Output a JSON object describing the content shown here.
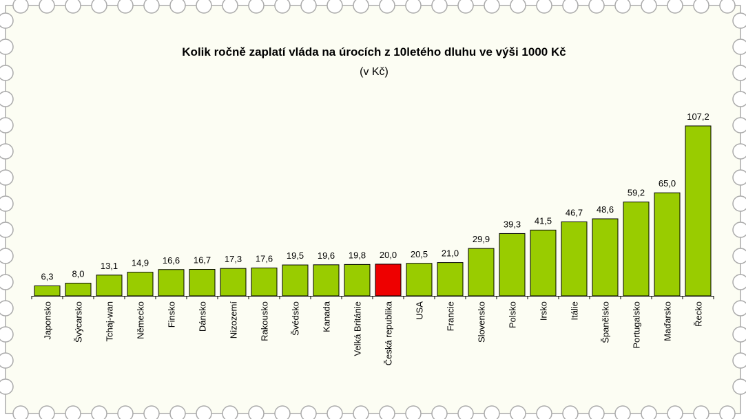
{
  "chart_data": {
    "type": "bar",
    "title": "Kolik ročně zaplatí vláda na úrocích z 10letého dluhu ve výši 1000 Kč",
    "subtitle": "(v Kč)",
    "categories": [
      "Japonsko",
      "Švýcarsko",
      "Tchaj-wan",
      "Německo",
      "Finsko",
      "Dánsko",
      "Nizozemí",
      "Rakousko",
      "Švédsko",
      "Kanada",
      "Velká Británie",
      "Česká republika",
      "USA",
      "Francie",
      "Slovensko",
      "Polsko",
      "Irsko",
      "Itálie",
      "Španělsko",
      "Portugalsko",
      "Maďarsko",
      "Řecko"
    ],
    "values": [
      6.3,
      8.0,
      13.1,
      14.9,
      16.6,
      16.7,
      17.3,
      17.6,
      19.5,
      19.6,
      19.8,
      20.0,
      20.5,
      21.0,
      29.9,
      39.3,
      41.5,
      46.7,
      48.6,
      59.2,
      65.0,
      107.2
    ],
    "value_labels": [
      "6,3",
      "8,0",
      "13,1",
      "14,9",
      "16,6",
      "16,7",
      "17,3",
      "17,6",
      "19,5",
      "19,6",
      "19,8",
      "20,0",
      "20,5",
      "21,0",
      "29,9",
      "39,3",
      "41,5",
      "46,7",
      "48,6",
      "59,2",
      "65,0",
      "107,2"
    ],
    "highlight_category": "Česká republika",
    "ylim": [
      0,
      110
    ],
    "grid": false,
    "legend": "none",
    "colors": {
      "bar": "#99cc00",
      "highlight": "#ee0000",
      "outline": "#000000",
      "background": "#fcfdf3",
      "frame": "#aaaaaa"
    }
  }
}
